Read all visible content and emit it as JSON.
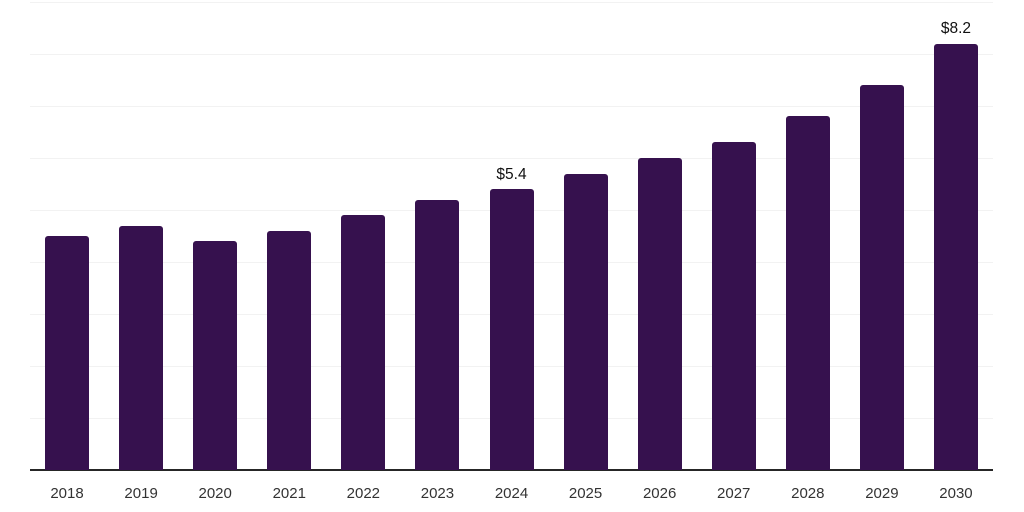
{
  "chart_data": {
    "type": "bar",
    "title": "",
    "xlabel": "",
    "ylabel": "",
    "categories": [
      "2018",
      "2019",
      "2020",
      "2021",
      "2022",
      "2023",
      "2024",
      "2025",
      "2026",
      "2027",
      "2028",
      "2029",
      "2030"
    ],
    "values": [
      4.5,
      4.7,
      4.4,
      4.6,
      4.9,
      5.2,
      5.4,
      5.7,
      6.0,
      6.3,
      6.8,
      7.4,
      8.2
    ],
    "data_labels": [
      "",
      "",
      "",
      "",
      "",
      "",
      "$5.4",
      "",
      "",
      "",
      "",
      "",
      "$8.2"
    ],
    "ylim": [
      0,
      9
    ],
    "gridline_step": 1,
    "grid": "horizontal",
    "legend": "none",
    "colors": {
      "bar": "#36114E",
      "gridline": "#F2F2F2",
      "axis_line": "#262626",
      "tick_label": "#333333",
      "data_label": "#111111",
      "background": "#FFFFFF"
    }
  }
}
